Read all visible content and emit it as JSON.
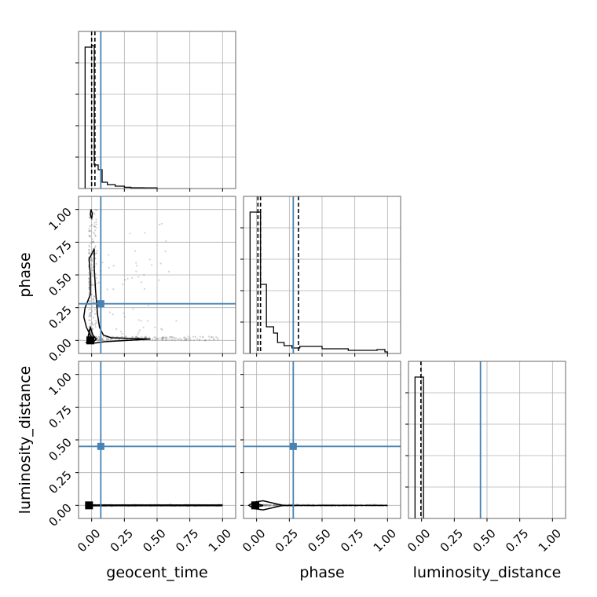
{
  "chart_data": {
    "type": "corner",
    "parameters": [
      "geocent_time",
      "phase",
      "luminosity_distance"
    ],
    "axis_range": [
      -0.1,
      1.1
    ],
    "ticks": [
      0.0,
      0.25,
      0.5,
      0.75,
      1.0
    ],
    "tick_labels": [
      "0.00",
      "0.25",
      "0.50",
      "0.75",
      "1.00"
    ],
    "diagonal_ylim": [
      0,
      1.0
    ],
    "diag_y_ticks": [
      0.2,
      0.4,
      0.6,
      0.8
    ],
    "grid": true,
    "colors": {
      "truth": "#4682b4",
      "hist": "#000000",
      "samples": "#808080"
    },
    "truths": {
      "geocent_time": 0.07,
      "phase": 0.28,
      "luminosity_distance": 0.45
    },
    "histograms": {
      "geocent_time": {
        "edges": [
          -0.05,
          0.0,
          0.02,
          0.05,
          0.08,
          0.12,
          0.18,
          0.25,
          0.3,
          0.4,
          0.5
        ],
        "values": [
          0.9,
          0.91,
          0.15,
          0.12,
          0.04,
          0.025,
          0.015,
          0.008,
          0.005,
          0.004
        ],
        "quantiles": [
          0.0,
          0.025
        ]
      },
      "phase": {
        "edges": [
          -0.05,
          0.0,
          0.015,
          0.03,
          0.075,
          0.13,
          0.16,
          0.21,
          0.27,
          0.33,
          0.5,
          0.6,
          0.7,
          0.8,
          0.92,
          0.98,
          1.0
        ],
        "values": [
          0.9,
          0.9,
          0.9,
          0.44,
          0.17,
          0.13,
          0.07,
          0.05,
          0.035,
          0.045,
          0.03,
          0.03,
          0.02,
          0.02,
          0.025,
          0.01
        ],
        "quantiles": [
          0.01,
          0.03,
          0.32
        ]
      },
      "luminosity_distance": {
        "edges": [
          -0.05,
          -0.005,
          0.015
        ],
        "values": [
          0.9,
          0.9
        ],
        "quantiles": [
          -0.005
        ]
      }
    },
    "sample_seed": 7,
    "sample_count": 430,
    "contours": {
      "phase_vs_geocent_time": {
        "outer": [
          [
            0.0,
            0.02
          ],
          [
            -0.04,
            0.1
          ],
          [
            -0.06,
            0.18
          ],
          [
            -0.05,
            0.25
          ],
          [
            -0.01,
            0.35
          ],
          [
            -0.01,
            0.5
          ],
          [
            -0.02,
            0.62
          ],
          [
            0.02,
            0.7
          ],
          [
            0.02,
            0.55
          ],
          [
            0.03,
            0.38
          ],
          [
            0.045,
            0.2
          ],
          [
            0.06,
            0.1
          ],
          [
            0.09,
            0.04
          ],
          [
            0.15,
            0.02
          ],
          [
            0.45,
            0.01
          ],
          [
            0.1,
            -0.01
          ],
          [
            0.03,
            -0.02
          ],
          [
            -0.04,
            -0.015
          ],
          [
            0.0,
            0.02
          ]
        ],
        "inner": [
          [
            -0.03,
            0.0
          ],
          [
            -0.025,
            0.04
          ],
          [
            -0.01,
            0.1
          ],
          [
            0.01,
            0.04
          ],
          [
            0.035,
            0.01
          ],
          [
            0.02,
            -0.005
          ],
          [
            -0.03,
            0.0
          ]
        ],
        "top": [
          [
            -0.01,
            0.96
          ],
          [
            -0.005,
            1.0
          ],
          [
            0.005,
            0.97
          ],
          [
            0.0,
            0.93
          ],
          [
            -0.01,
            0.96
          ]
        ],
        "mode": [
          -0.01,
          0.0
        ]
      },
      "luminosity_distance_vs_geocent_time": {
        "line": [
          [
            -0.02,
            0.0
          ],
          [
            1.0,
            0.0
          ]
        ],
        "mode": [
          -0.02,
          0.0
        ]
      },
      "luminosity_distance_vs_phase": {
        "outer": [
          [
            0.2,
            0.0
          ],
          [
            0.05,
            0.035
          ],
          [
            -0.02,
            0.025
          ],
          [
            -0.06,
            0.0
          ],
          [
            -0.02,
            -0.025
          ],
          [
            0.05,
            -0.035
          ],
          [
            0.2,
            0.0
          ],
          [
            1.0,
            0.0
          ]
        ],
        "inner": [
          [
            -0.02,
            0.0
          ],
          [
            0.0,
            0.012
          ],
          [
            0.05,
            0.0
          ],
          [
            0.0,
            -0.012
          ],
          [
            -0.02,
            0.0
          ]
        ],
        "mode": [
          -0.01,
          0.0
        ]
      }
    }
  }
}
